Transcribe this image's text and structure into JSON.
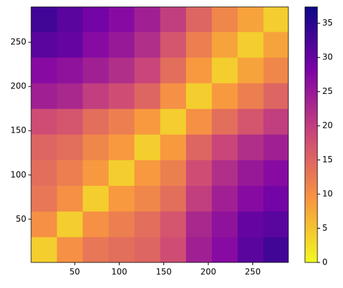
{
  "chart_data": {
    "type": "heatmap",
    "colormap": "plasma_r",
    "x_edges": [
      1,
      30,
      59,
      88,
      117,
      146,
      175,
      204,
      233,
      262,
      290
    ],
    "y_edges": [
      1,
      30,
      59,
      88,
      117,
      146,
      175,
      204,
      233,
      262,
      290
    ],
    "values": [
      [
        4,
        10,
        13,
        14,
        15,
        18,
        24,
        27,
        31,
        33
      ],
      [
        10,
        4,
        10,
        12,
        14,
        17,
        23,
        26,
        30,
        31
      ],
      [
        13,
        10,
        4,
        9,
        11,
        14,
        20,
        24,
        27,
        29
      ],
      [
        14,
        12,
        9,
        4,
        9,
        12,
        18,
        22,
        25,
        27
      ],
      [
        15,
        14,
        11,
        9,
        4,
        9,
        15,
        19,
        22,
        24
      ],
      [
        18,
        17,
        14,
        12,
        9,
        4,
        10,
        14,
        17,
        20
      ],
      [
        24,
        23,
        20,
        18,
        15,
        10,
        4,
        9,
        12,
        15
      ],
      [
        27,
        26,
        24,
        22,
        19,
        14,
        9,
        4,
        8,
        11
      ],
      [
        31,
        30,
        27,
        25,
        22,
        17,
        12,
        8,
        4,
        8
      ],
      [
        33,
        31,
        29,
        27,
        24,
        20,
        15,
        11,
        8,
        4
      ]
    ],
    "xlim": [
      1,
      290
    ],
    "ylim": [
      1,
      290
    ],
    "xticks": [
      50,
      100,
      150,
      200,
      250
    ],
    "yticks": [
      50,
      100,
      150,
      200,
      250
    ],
    "clim": [
      0,
      37.4
    ],
    "cticks": [
      0,
      5,
      10,
      15,
      20,
      25,
      30,
      35
    ]
  }
}
